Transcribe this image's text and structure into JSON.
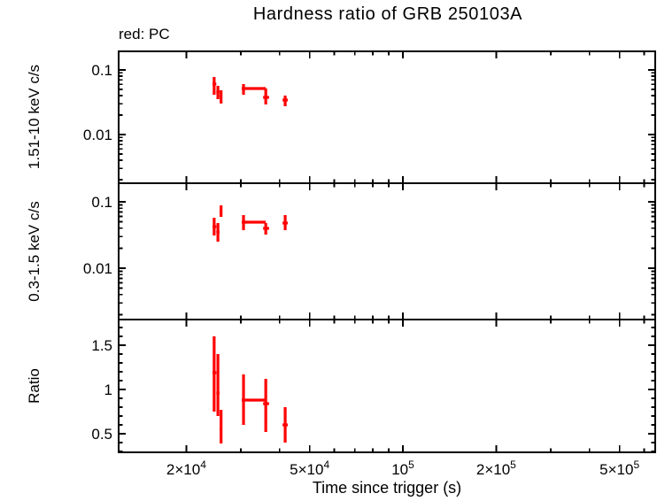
{
  "figure": {
    "title": "Hardness ratio of GRB 250103A",
    "legend_note": "red: PC",
    "data_color": "#ff0000",
    "axis_color": "#000000"
  },
  "chart_data": {
    "type": "scatter",
    "subtype": "errorbar-cross-3-panel",
    "x_scale": "log",
    "xlabel": "Time since trigger (s)",
    "xlim": [
      12100,
      652000
    ],
    "x_ticks": [
      {
        "v": 20000,
        "base": "2×10",
        "exp": "4"
      },
      {
        "v": 30000
      },
      {
        "v": 40000
      },
      {
        "v": 50000,
        "base": "5×10",
        "exp": "4"
      },
      {
        "v": 60000
      },
      {
        "v": 70000
      },
      {
        "v": 80000
      },
      {
        "v": 90000
      },
      {
        "v": 100000,
        "base": "10",
        "exp": "5"
      },
      {
        "v": 200000,
        "base": "2×10",
        "exp": "5"
      },
      {
        "v": 300000
      },
      {
        "v": 400000
      },
      {
        "v": 500000,
        "base": "5×10",
        "exp": "5"
      },
      {
        "v": 600000
      }
    ],
    "panels": [
      {
        "name": "hard-rate",
        "ylabel": "1.51-10 keV c/s",
        "y_scale": "log",
        "ylim": [
          0.001764,
          0.1939
        ],
        "y_major_ticks": [
          {
            "v": 0.1,
            "label": "0.1"
          },
          {
            "v": 0.01,
            "label": "0.01"
          }
        ],
        "y_minor_ticks": [
          0.002,
          0.003,
          0.004,
          0.005,
          0.006,
          0.007,
          0.008,
          0.009,
          0.02,
          0.03,
          0.04,
          0.05,
          0.06,
          0.07,
          0.08,
          0.09
        ],
        "points": [
          {
            "t": 24600,
            "t_lo": 24300,
            "t_hi": 25000,
            "v": 0.0604,
            "v_lo": 0.0413,
            "v_hi": 0.0777
          },
          {
            "t": 25300,
            "t_lo": 25000,
            "t_hi": 25600,
            "v": 0.0454,
            "v_lo": 0.0353,
            "v_hi": 0.0567
          },
          {
            "t": 25900,
            "t_lo": 25600,
            "t_hi": 26100,
            "v": 0.0388,
            "v_lo": 0.0302,
            "v_hi": 0.0484
          },
          {
            "t": 30600,
            "t_lo": 30200,
            "t_hi": 36100,
            "v": 0.0516,
            "v_lo": 0.0413,
            "v_hi": 0.0604
          },
          {
            "t": 36100,
            "t_lo": 35400,
            "t_hi": 37000,
            "v": 0.0376,
            "v_lo": 0.0292,
            "v_hi": 0.0516
          },
          {
            "t": 41700,
            "t_lo": 40900,
            "t_hi": 42500,
            "v": 0.0342,
            "v_lo": 0.0274,
            "v_hi": 0.0401
          }
        ]
      },
      {
        "name": "soft-rate",
        "ylabel": "0.3-1.5 keV c/s",
        "y_scale": "log",
        "ylim": [
          0.001685,
          0.1905
        ],
        "y_major_ticks": [
          {
            "v": 0.1,
            "label": "0.1"
          },
          {
            "v": 0.01,
            "label": "0.01"
          }
        ],
        "y_minor_ticks": [
          0.002,
          0.003,
          0.004,
          0.005,
          0.006,
          0.007,
          0.008,
          0.009,
          0.02,
          0.03,
          0.04,
          0.05,
          0.06,
          0.07,
          0.08,
          0.09
        ],
        "points": [
          {
            "t": 24600,
            "t_lo": 24300,
            "t_hi": 25000,
            "v": 0.0423,
            "v_lo": 0.0311,
            "v_hi": 0.0575
          },
          {
            "t": 25300,
            "t_lo": 25000,
            "t_hi": 25600,
            "v": 0.0352,
            "v_lo": 0.0251,
            "v_hi": 0.0479
          },
          {
            "t": 25900,
            "t_lo": 25600,
            "t_hi": 26100,
            "v": 0.0713,
            "v_lo": 0.0593,
            "v_hi": 0.0885
          },
          {
            "t": 30600,
            "t_lo": 30200,
            "t_hi": 36100,
            "v": 0.0494,
            "v_lo": 0.0374,
            "v_hi": 0.0631
          },
          {
            "t": 36100,
            "t_lo": 35400,
            "t_hi": 37000,
            "v": 0.0398,
            "v_lo": 0.0321,
            "v_hi": 0.0479
          },
          {
            "t": 41700,
            "t_lo": 40900,
            "t_hi": 42500,
            "v": 0.0479,
            "v_lo": 0.0374,
            "v_hi": 0.0631
          }
        ]
      },
      {
        "name": "ratio",
        "ylabel": "Ratio",
        "y_scale": "linear",
        "ylim": [
          0.29,
          1.79
        ],
        "y_major_ticks": [
          {
            "v": 0.5,
            "label": "0.5"
          },
          {
            "v": 1,
            "label": "1"
          },
          {
            "v": 1.5,
            "label": "1.5"
          }
        ],
        "y_minor_ticks": [
          0.3,
          0.4,
          0.6,
          0.7,
          0.8,
          0.9,
          1.1,
          1.2,
          1.3,
          1.4,
          1.6,
          1.7
        ],
        "points": [
          {
            "t": 24600,
            "t_lo": 24300,
            "t_hi": 25000,
            "v": 1.19,
            "v_lo": 0.75,
            "v_hi": 1.6
          },
          {
            "t": 25300,
            "t_lo": 25000,
            "t_hi": 25600,
            "v": 0.96,
            "v_lo": 0.7,
            "v_hi": 1.4
          },
          {
            "t": 25900,
            "t_lo": 25600,
            "t_hi": 26100,
            "v": 0.55,
            "v_lo": 0.39,
            "v_hi": 0.77
          },
          {
            "t": 30600,
            "t_lo": 30200,
            "t_hi": 36100,
            "v": 0.88,
            "v_lo": 0.6,
            "v_hi": 1.17
          },
          {
            "t": 36100,
            "t_lo": 35400,
            "t_hi": 37000,
            "v": 0.84,
            "v_lo": 0.52,
            "v_hi": 1.12
          },
          {
            "t": 41700,
            "t_lo": 40900,
            "t_hi": 42500,
            "v": 0.6,
            "v_lo": 0.4,
            "v_hi": 0.8
          }
        ]
      }
    ]
  }
}
